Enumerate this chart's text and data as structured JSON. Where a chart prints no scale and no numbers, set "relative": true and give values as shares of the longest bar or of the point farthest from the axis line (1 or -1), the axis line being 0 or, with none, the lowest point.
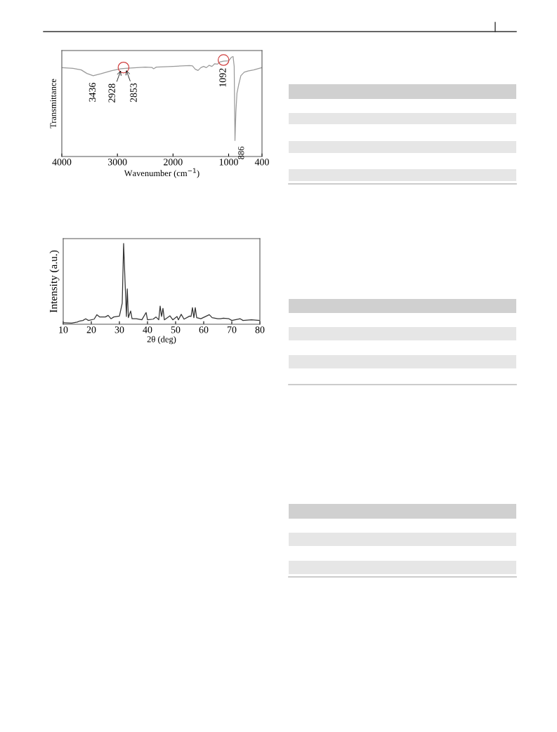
{
  "chart_data": [
    {
      "type": "line",
      "xlabel": "Wavenumber (cm$^{−1}$)",
      "ylabel": "Transmittance",
      "relative": true,
      "xlim": [
        4000,
        400
      ],
      "xticks": [
        4000,
        3000,
        2000,
        1000,
        400
      ],
      "x": [
        4000,
        3800,
        3650,
        3550,
        3436,
        3300,
        3100,
        2928,
        2853,
        2700,
        2500,
        2380,
        2350,
        2300,
        2000,
        1700,
        1650,
        1600,
        1550,
        1500,
        1450,
        1400,
        1350,
        1300,
        1250,
        1200,
        1150,
        1092,
        1000,
        950,
        920,
        900,
        886,
        870,
        850,
        820,
        780,
        720,
        650,
        550,
        450,
        400
      ],
      "series": [
        {
          "color": "#9a9a9a",
          "values": [
            0.889,
            0.882,
            0.866,
            0.831,
            0.808,
            0.827,
            0.859,
            0.878,
            0.882,
            0.887,
            0.894,
            0.891,
            0.878,
            0.894,
            0.901,
            0.91,
            0.907,
            0.873,
            0.861,
            0.889,
            0.901,
            0.889,
            0.912,
            0.901,
            0.928,
            0.924,
            0.947,
            0.954,
            0.958,
            0.993,
            1.0,
            0.901,
            0.16,
            0.439,
            0.635,
            0.716,
            0.808,
            0.843,
            0.855,
            0.866,
            0.882,
            0.889
          ]
        }
      ],
      "annotations": [
        {
          "text": "3436",
          "x": 3436,
          "y": 0.808
        },
        {
          "text": "2928",
          "x": 2928,
          "y": 0.878
        },
        {
          "text": "2853",
          "x": 2853,
          "y": 0.882
        },
        {
          "text": "1092",
          "x": 1092,
          "y": 0.954
        },
        {
          "text": "886",
          "x": 886,
          "y": 0.16
        }
      ]
    },
    {
      "type": "line",
      "xlabel": "2θ (deg)",
      "ylabel": "Intensity (a.u.)",
      "relative": true,
      "xlim": [
        10,
        80
      ],
      "xticks": [
        10,
        20,
        30,
        40,
        50,
        60,
        70,
        80
      ],
      "x": [
        10,
        13,
        15,
        16,
        17,
        18,
        19,
        21,
        22,
        23,
        25,
        26,
        27,
        28,
        30,
        31,
        31.5,
        32,
        32.5,
        32.8,
        33.2,
        34,
        34.5,
        36,
        38,
        39.5,
        40,
        42,
        43,
        44,
        44.5,
        45,
        45.5,
        46,
        48,
        49,
        50.5,
        51,
        52,
        53,
        55,
        55.5,
        56,
        56.5,
        57,
        57.5,
        59,
        62,
        63,
        65,
        66,
        67,
        69,
        70,
        73,
        74,
        77,
        80
      ],
      "series": [
        {
          "color": "#333333",
          "values": [
            0.019,
            0.014,
            0.027,
            0.041,
            0.047,
            0.068,
            0.047,
            0.063,
            0.118,
            0.09,
            0.09,
            0.11,
            0.068,
            0.09,
            0.101,
            0.26,
            1.0,
            0.534,
            0.096,
            0.438,
            0.082,
            0.164,
            0.068,
            0.068,
            0.055,
            0.145,
            0.055,
            0.063,
            0.09,
            0.055,
            0.225,
            0.096,
            0.197,
            0.055,
            0.104,
            0.055,
            0.096,
            0.055,
            0.123,
            0.063,
            0.101,
            0.096,
            0.205,
            0.082,
            0.205,
            0.082,
            0.068,
            0.118,
            0.082,
            0.068,
            0.068,
            0.074,
            0.068,
            0.047,
            0.068,
            0.047,
            0.055,
            0.047
          ]
        }
      ]
    }
  ]
}
